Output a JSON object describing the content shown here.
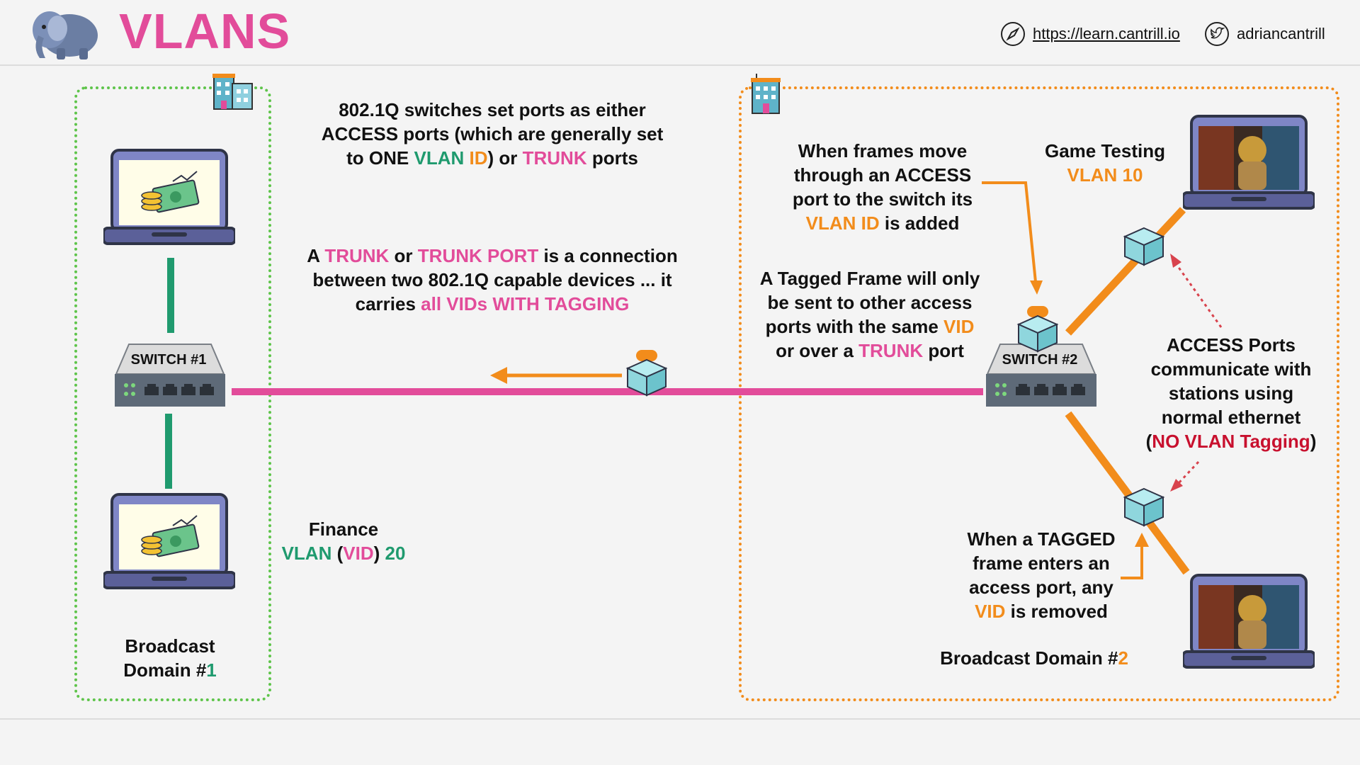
{
  "header": {
    "title": "VLANS",
    "website": "https://learn.cantrill.io",
    "twitter": "adriancantrill",
    "logo_icon": "elephant-icon"
  },
  "switches": {
    "one": "SWITCH #1",
    "two": "SWITCH #2"
  },
  "intro": {
    "l1": "802.1Q switches set ports as either",
    "l2": "ACCESS ports (which are generally set",
    "l3a": "to ONE ",
    "l3b": "VLAN",
    "l3c": " ID",
    "l3d": ") or ",
    "l3e": "TRUNK",
    "l3f": " ports"
  },
  "trunk": {
    "a": "A ",
    "b": "TRUNK",
    "c": " or ",
    "d": "TRUNK PORT",
    "e": " is a connection",
    "l2": "between two 802.1Q capable devices ... it",
    "l3a": "carries ",
    "l3b": "all VIDs WITH TAGGING"
  },
  "finance": {
    "l1": "Finance",
    "a": "VLAN",
    "b": " (",
    "c": "VID",
    "d": ") ",
    "e": "20"
  },
  "bd1": {
    "l1": "Broadcast",
    "l2a": "Domain #",
    "l2b": "1"
  },
  "frames_move": {
    "l1": "When frames move",
    "l2": "through an ACCESS",
    "l3": "port to the switch its",
    "l4a": "VLAN ID",
    "l4b": " is added"
  },
  "game": {
    "l1": "Game Testing",
    "l2": "VLAN 10"
  },
  "tagged": {
    "l1": "A Tagged Frame will only",
    "l2": "be sent to other access",
    "l3a": "ports with the same ",
    "l3b": "VID",
    "l4a": "or over a ",
    "l4b": "TRUNK",
    "l4c": " port"
  },
  "access_ports": {
    "l1": "ACCESS Ports",
    "l2": "communicate with",
    "l3": "stations using",
    "l4": "normal ethernet",
    "l5a": "(",
    "l5b": "NO VLAN Tagging",
    "l5c": ")"
  },
  "tagged_enters": {
    "l1": "When a TAGGED",
    "l2": "frame enters an",
    "l3": "access port, any",
    "l4a": "VID",
    "l4b": " is removed"
  },
  "bd2": {
    "a": "Broadcast Domain #",
    "b": "2"
  },
  "colors": {
    "pink": "#e24c9a",
    "orange": "#f28c1b",
    "green": "#1f9a6e",
    "red": "#c8102e",
    "bd1_border": "#5ec44a",
    "bd2_border": "#f28c1b"
  }
}
